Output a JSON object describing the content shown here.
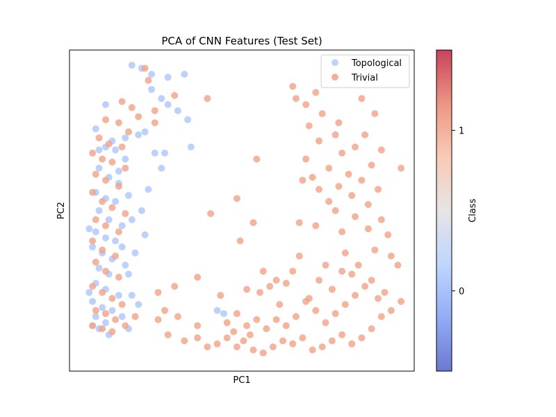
{
  "chart_data": {
    "type": "scatter",
    "title": "PCA of CNN Features (Test Set)",
    "xlabel": "PC1",
    "ylabel": "PC2",
    "xlim": [
      -0.3,
      10.2
    ],
    "ylim": [
      -0.4,
      10.2
    ],
    "grid": false,
    "legend_position": "top-right",
    "colorbar": {
      "label": "Class",
      "ticks": [
        0,
        1
      ],
      "range": [
        -0.5,
        1.5
      ],
      "colormap": "coolwarm",
      "stops": [
        "#3b4cc0",
        "#6f92f3",
        "#aac7fd",
        "#dddcdc",
        "#f7b89c",
        "#e7745b",
        "#b40426"
      ]
    },
    "series": [
      {
        "name": "Topological",
        "color": "#a5c1fa",
        "points": [
          [
            0.5,
            7.6
          ],
          [
            0.8,
            8.4
          ],
          [
            1.6,
            9.7
          ],
          [
            1.9,
            9.6
          ],
          [
            2.2,
            9.4
          ],
          [
            2.7,
            9.3
          ],
          [
            3.2,
            9.4
          ],
          [
            2.2,
            8.9
          ],
          [
            2.5,
            8.6
          ],
          [
            2.7,
            8.4
          ],
          [
            3.0,
            8.2
          ],
          [
            3.3,
            7.9
          ],
          [
            2.0,
            7.5
          ],
          [
            1.8,
            7.4
          ],
          [
            2.3,
            6.8
          ],
          [
            2.6,
            6.8
          ],
          [
            3.4,
            7.0
          ],
          [
            2.5,
            6.3
          ],
          [
            0.8,
            7.0
          ],
          [
            1.1,
            6.9
          ],
          [
            1.4,
            6.6
          ],
          [
            0.6,
            6.3
          ],
          [
            0.9,
            6.0
          ],
          [
            1.2,
            5.8
          ],
          [
            0.5,
            5.5
          ],
          [
            0.8,
            5.3
          ],
          [
            1.1,
            5.2
          ],
          [
            0.6,
            4.9
          ],
          [
            0.9,
            4.6
          ],
          [
            1.3,
            4.4
          ],
          [
            0.5,
            4.2
          ],
          [
            0.8,
            4.0
          ],
          [
            1.1,
            3.9
          ],
          [
            0.4,
            3.7
          ],
          [
            0.7,
            3.5
          ],
          [
            1.0,
            3.3
          ],
          [
            1.4,
            3.1
          ],
          [
            0.6,
            3.0
          ],
          [
            0.9,
            2.8
          ],
          [
            0.5,
            2.5
          ],
          [
            0.8,
            2.3
          ],
          [
            1.2,
            2.1
          ],
          [
            0.4,
            1.9
          ],
          [
            0.7,
            1.7
          ],
          [
            1.0,
            1.6
          ],
          [
            0.5,
            1.4
          ],
          [
            0.8,
            1.2
          ],
          [
            0.6,
            1.0
          ],
          [
            0.9,
            0.8
          ],
          [
            2.1,
            5.6
          ],
          [
            1.9,
            4.9
          ],
          [
            2.0,
            4.1
          ],
          [
            1.7,
            3.5
          ],
          [
            1.5,
            2.8
          ],
          [
            1.6,
            2.1
          ],
          [
            1.3,
            1.4
          ],
          [
            1.5,
            1.0
          ],
          [
            0.3,
            2.2
          ],
          [
            0.4,
            1.1
          ],
          [
            1.4,
            7.3
          ],
          [
            1.2,
            6.2
          ],
          [
            1.5,
            5.4
          ],
          [
            1.6,
            4.6
          ],
          [
            1.3,
            3.7
          ],
          [
            1.8,
            1.8
          ],
          [
            4.2,
            1.6
          ],
          [
            4.4,
            1.5
          ],
          [
            0.3,
            4.3
          ],
          [
            0.6,
            6.9
          ],
          [
            1.0,
            7.2
          ]
        ]
      },
      {
        "name": "Trivial",
        "color": "#f2a184",
        "points": [
          [
            2.0,
            9.6
          ],
          [
            2.1,
            9.2
          ],
          [
            1.3,
            8.5
          ],
          [
            1.6,
            8.3
          ],
          [
            2.3,
            8.2
          ],
          [
            2.9,
            8.7
          ],
          [
            3.9,
            8.6
          ],
          [
            0.8,
            7.9
          ],
          [
            1.2,
            7.8
          ],
          [
            1.5,
            7.5
          ],
          [
            0.6,
            7.3
          ],
          [
            0.9,
            7.1
          ],
          [
            1.3,
            7.0
          ],
          [
            0.4,
            6.8
          ],
          [
            0.7,
            6.6
          ],
          [
            1.0,
            6.5
          ],
          [
            1.4,
            6.3
          ],
          [
            0.5,
            6.1
          ],
          [
            0.8,
            5.9
          ],
          [
            1.2,
            5.7
          ],
          [
            0.4,
            5.5
          ],
          [
            0.7,
            5.2
          ],
          [
            1.0,
            5.0
          ],
          [
            1.4,
            4.8
          ],
          [
            0.5,
            4.6
          ],
          [
            0.8,
            4.4
          ],
          [
            1.2,
            4.2
          ],
          [
            0.4,
            3.9
          ],
          [
            0.7,
            3.6
          ],
          [
            1.1,
            3.4
          ],
          [
            0.5,
            3.2
          ],
          [
            0.8,
            2.9
          ],
          [
            1.2,
            2.7
          ],
          [
            0.4,
            2.4
          ],
          [
            0.7,
            2.2
          ],
          [
            1.0,
            2.0
          ],
          [
            1.3,
            1.8
          ],
          [
            0.5,
            1.6
          ],
          [
            0.8,
            1.5
          ],
          [
            1.1,
            1.3
          ],
          [
            0.4,
            1.1
          ],
          [
            0.7,
            1.0
          ],
          [
            1.0,
            0.9
          ],
          [
            1.4,
            1.1
          ],
          [
            1.7,
            1.4
          ],
          [
            2.4,
            1.3
          ],
          [
            2.6,
            1.6
          ],
          [
            3.0,
            1.4
          ],
          [
            2.7,
            0.8
          ],
          [
            3.2,
            0.6
          ],
          [
            3.6,
            0.7
          ],
          [
            3.9,
            0.4
          ],
          [
            4.2,
            0.5
          ],
          [
            4.5,
            0.7
          ],
          [
            4.8,
            0.4
          ],
          [
            5.0,
            0.6
          ],
          [
            5.3,
            0.3
          ],
          [
            5.6,
            0.2
          ],
          [
            5.9,
            0.4
          ],
          [
            6.2,
            0.6
          ],
          [
            6.5,
            0.5
          ],
          [
            6.8,
            0.7
          ],
          [
            7.1,
            0.3
          ],
          [
            7.4,
            0.4
          ],
          [
            7.7,
            0.6
          ],
          [
            8.0,
            0.8
          ],
          [
            8.3,
            0.5
          ],
          [
            8.6,
            0.7
          ],
          [
            8.9,
            1.0
          ],
          [
            9.2,
            1.4
          ],
          [
            9.5,
            1.6
          ],
          [
            9.1,
            2.0
          ],
          [
            8.7,
            2.4
          ],
          [
            8.4,
            2.1
          ],
          [
            8.1,
            1.8
          ],
          [
            7.8,
            1.5
          ],
          [
            7.5,
            1.2
          ],
          [
            7.2,
            1.6
          ],
          [
            6.9,
            1.9
          ],
          [
            6.6,
            1.4
          ],
          [
            6.3,
            1.1
          ],
          [
            6.0,
            1.3
          ],
          [
            5.7,
            1.0
          ],
          [
            5.4,
            1.3
          ],
          [
            5.1,
            1.1
          ],
          [
            4.8,
            1.5
          ],
          [
            4.5,
            1.2
          ],
          [
            6.0,
            2.6
          ],
          [
            5.5,
            2.2
          ],
          [
            6.5,
            2.9
          ],
          [
            7.3,
            2.6
          ],
          [
            7.7,
            2.3
          ],
          [
            8.0,
            2.9
          ],
          [
            8.5,
            3.1
          ],
          [
            9.0,
            3.6
          ],
          [
            9.4,
            4.1
          ],
          [
            9.2,
            4.6
          ],
          [
            8.8,
            4.3
          ],
          [
            8.4,
            4.7
          ],
          [
            8.0,
            4.2
          ],
          [
            7.8,
            4.9
          ],
          [
            8.3,
            5.4
          ],
          [
            8.8,
            5.1
          ],
          [
            9.1,
            5.6
          ],
          [
            8.6,
            5.9
          ],
          [
            8.2,
            6.1
          ],
          [
            7.9,
            5.7
          ],
          [
            7.6,
            6.3
          ],
          [
            8.0,
            6.8
          ],
          [
            8.4,
            7.0
          ],
          [
            7.8,
            7.4
          ],
          [
            7.3,
            7.2
          ],
          [
            7.0,
            7.7
          ],
          [
            7.4,
            8.1
          ],
          [
            7.9,
            7.8
          ],
          [
            6.9,
            8.4
          ],
          [
            7.2,
            8.8
          ],
          [
            6.6,
            8.6
          ],
          [
            6.5,
            9.0
          ],
          [
            6.9,
            6.6
          ],
          [
            7.3,
            5.6
          ],
          [
            6.8,
            5.9
          ],
          [
            7.6,
            5.2
          ],
          [
            7.2,
            4.4
          ],
          [
            6.7,
            3.4
          ],
          [
            5.4,
            6.6
          ],
          [
            6.7,
            4.5
          ],
          [
            5.3,
            4.5
          ],
          [
            4.9,
            3.9
          ],
          [
            5.6,
            2.9
          ],
          [
            4.0,
            4.8
          ],
          [
            2.4,
            2.2
          ],
          [
            2.9,
            2.4
          ],
          [
            3.6,
            2.7
          ],
          [
            4.3,
            2.1
          ],
          [
            5.1,
            2.3
          ],
          [
            5.8,
            2.4
          ],
          [
            6.3,
            2.5
          ],
          [
            7.0,
            2.0
          ],
          [
            8.9,
            2.6
          ],
          [
            9.5,
            3.4
          ],
          [
            8.1,
            3.5
          ],
          [
            9.7,
            3.1
          ],
          [
            8.9,
            6.4
          ],
          [
            9.2,
            6.9
          ],
          [
            9.8,
            6.3
          ],
          [
            8.6,
            8.6
          ],
          [
            9.0,
            8.1
          ],
          [
            4.8,
            5.3
          ],
          [
            2.3,
            7.8
          ],
          [
            1.8,
            8.0
          ],
          [
            3.6,
            1.1
          ],
          [
            4.7,
            0.9
          ],
          [
            9.8,
            1.9
          ],
          [
            7.5,
            3.1
          ],
          [
            6.1,
            1.8
          ],
          [
            5.2,
            0.8
          ],
          [
            8.3,
            2.8
          ],
          [
            9.3,
            2.2
          ],
          [
            7.1,
            6.0
          ],
          [
            8.7,
            7.4
          ]
        ]
      }
    ]
  }
}
